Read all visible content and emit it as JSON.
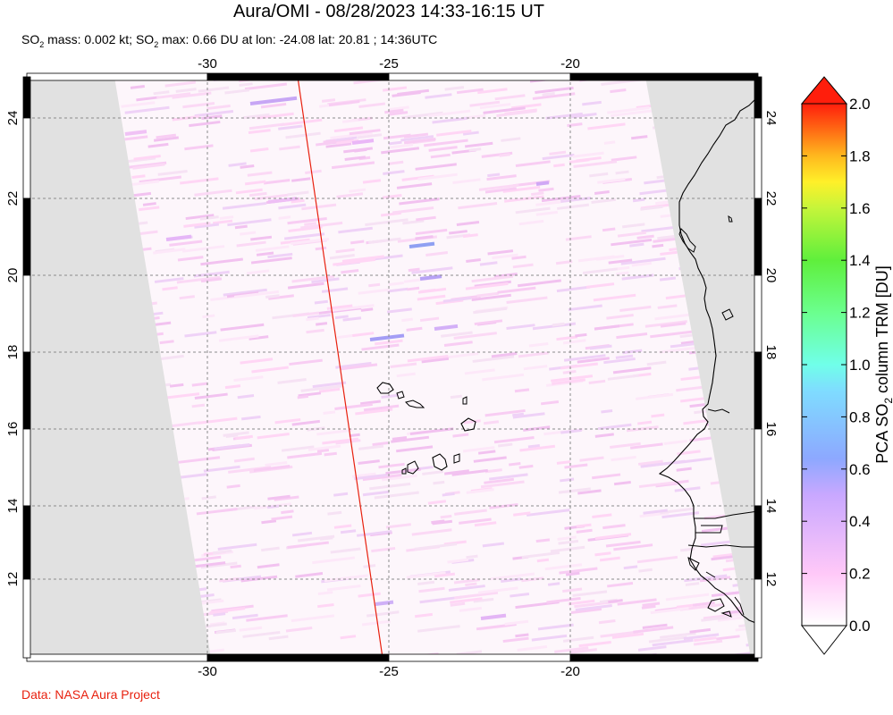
{
  "title": "Aura/OMI - 08/28/2023 14:33-16:15 UT",
  "subtitle": {
    "mass_prefix": "SO",
    "mass_sub": "2",
    "mass_text": " mass: 0.002 kt; SO",
    "max_sub": "2",
    "max_text": " max: 0.66 DU at lon: -24.08 lat: 20.81 ; 14:36UTC"
  },
  "credit": "Data: NASA Aura Project",
  "map": {
    "lon_ticks": [
      "-30",
      "-25",
      "-20"
    ],
    "lat_ticks": [
      "24",
      "22",
      "20",
      "18",
      "16",
      "14",
      "12"
    ],
    "colors": {
      "no_data": "#e1e1e1",
      "grid": "#8c8c8c",
      "swath_edge": "#e8200e",
      "coast": "#000000"
    }
  },
  "colorbar": {
    "title_prefix": "PCA SO",
    "title_sub": "2",
    "title_suffix": " column TRM [DU]",
    "ticks": [
      "2.0",
      "1.8",
      "1.6",
      "1.4",
      "1.2",
      "1.0",
      "0.8",
      "0.6",
      "0.4",
      "0.2",
      "0.0"
    ],
    "colors": [
      "#ffffff",
      "#ffc8f8",
      "#c9a8ff",
      "#8da8ff",
      "#7fdcff",
      "#70ffe9",
      "#6bff8e",
      "#5fef3c",
      "#c5f53a",
      "#fff029",
      "#ffb81e",
      "#ff6a14",
      "#ff1e0c"
    ]
  }
}
